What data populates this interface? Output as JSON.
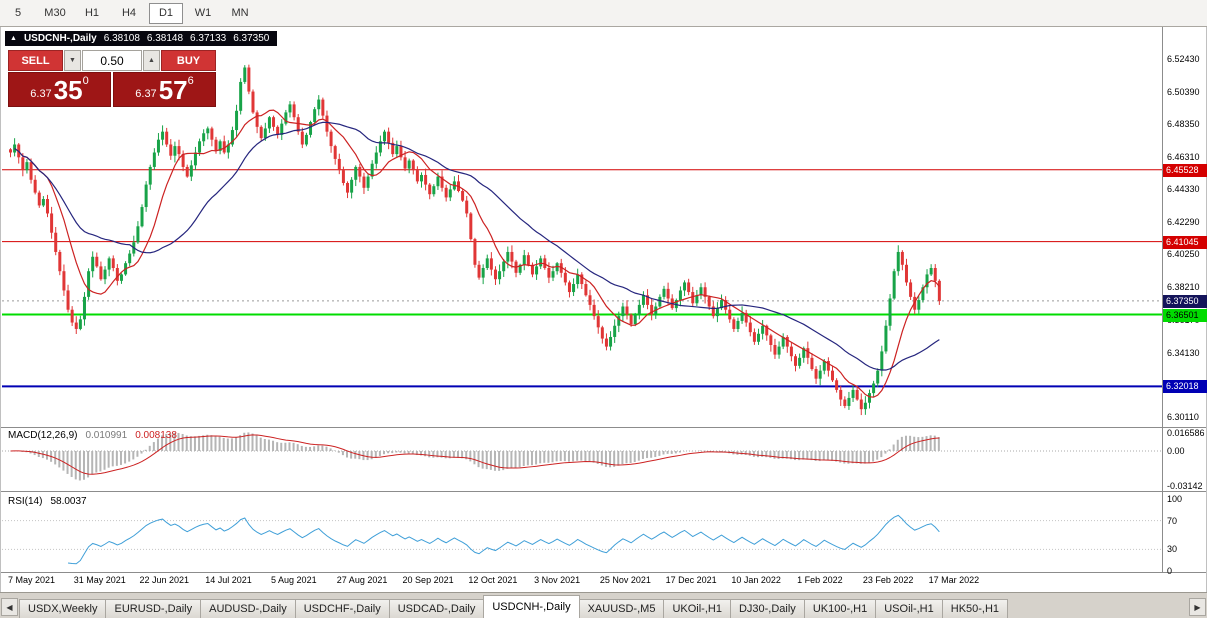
{
  "timeframe_toolbar": {
    "items": [
      "5",
      "M30",
      "H1",
      "H4",
      "D1",
      "W1",
      "MN"
    ],
    "active": "D1"
  },
  "icons": {
    "collapse": "▲",
    "dropdown_down": "▼",
    "spin_up": "▲",
    "scroll_left": "◀",
    "scroll_right": "▶"
  },
  "quote_header": {
    "symbol": "USDCNH-,Daily",
    "open": "6.38108",
    "high": "6.38148",
    "low": "6.37133",
    "close": "6.37350"
  },
  "trade_panel": {
    "sell_label": "SELL",
    "buy_label": "BUY",
    "lot_value": "0.50",
    "bid": {
      "prefix": "6.37",
      "big": "35",
      "sup": "0"
    },
    "ask": {
      "prefix": "6.37",
      "big": "57",
      "sup": "6"
    }
  },
  "indicators": {
    "macd": {
      "label": "MACD(12,26,9)",
      "main_value": "0.010991",
      "signal_value": "0.008138",
      "axis_labels": [
        {
          "text": "0.016586",
          "value": 0.016586
        },
        {
          "text": "0.00",
          "value": 0
        },
        {
          "text": "-0.03142",
          "value": -0.03142
        }
      ]
    },
    "rsi": {
      "label": "RSI(14)",
      "value": "58.0037",
      "axis_labels": [
        {
          "text": "100",
          "value": 100
        },
        {
          "text": "70",
          "value": 70
        },
        {
          "text": "30",
          "value": 30
        },
        {
          "text": "0",
          "value": 0
        }
      ],
      "levels": [
        70,
        30
      ]
    }
  },
  "colors": {
    "candle_up": "#18a348",
    "candle_down": "#e03636",
    "macd_hist": "#b5b5b5",
    "macd_signal": "#cc2222",
    "rsi_line": "#3f9fd8",
    "trade_button_red": "#d03434",
    "trade_price_red": "#9e1616",
    "current_price_badge": "#14145a"
  },
  "chart_data": {
    "type": "candlestick",
    "symbol": "USDCNH-",
    "timeframe": "Daily",
    "price_axis_ticks": [
      "6.52430",
      "6.50390",
      "6.48350",
      "6.46310",
      "6.44330",
      "6.42290",
      "6.40250",
      "6.38210",
      "6.36170",
      "6.34130",
      "6.30110"
    ],
    "current_price": {
      "value": 6.3735,
      "label": "6.37350"
    },
    "levels": [
      {
        "value": 6.45528,
        "label": "6.45528",
        "color": "#d40000",
        "width": 1
      },
      {
        "value": 6.41045,
        "label": "6.41045",
        "color": "#d40000",
        "width": 1
      },
      {
        "value": 6.36501,
        "label": "6.36501",
        "color": "#00dc00",
        "width": 2,
        "text_color": "#000000"
      },
      {
        "value": 6.32018,
        "label": "6.32018",
        "color": "#0000b4",
        "width": 2
      }
    ],
    "date_labels": [
      "7 May 2021",
      "31 May 2021",
      "22 Jun 2021",
      "14 Jul 2021",
      "5 Aug 2021",
      "27 Aug 2021",
      "20 Sep 2021",
      "12 Oct 2021",
      "3 Nov 2021",
      "25 Nov 2021",
      "17 Dec 2021",
      "10 Jan 2022",
      "1 Feb 2022",
      "23 Feb 2022",
      "17 Mar 2022"
    ],
    "bars_per_label_interval": 16,
    "first_open": 6.468,
    "closes": [
      6.466,
      6.471,
      6.463,
      6.455,
      6.46,
      6.449,
      6.441,
      6.433,
      6.437,
      6.428,
      6.416,
      6.404,
      6.392,
      6.38,
      6.368,
      6.36,
      6.356,
      6.362,
      6.376,
      6.392,
      6.401,
      6.395,
      6.387,
      6.393,
      6.4,
      6.394,
      6.386,
      6.39,
      6.397,
      6.403,
      6.41,
      6.42,
      6.432,
      6.446,
      6.457,
      6.466,
      6.474,
      6.479,
      6.471,
      6.464,
      6.47,
      6.465,
      6.457,
      6.451,
      6.458,
      6.466,
      6.473,
      6.478,
      6.481,
      6.474,
      6.467,
      6.473,
      6.466,
      6.471,
      6.48,
      6.492,
      6.51,
      6.519,
      6.504,
      6.491,
      6.482,
      6.475,
      6.481,
      6.488,
      6.482,
      6.477,
      6.484,
      6.491,
      6.496,
      6.488,
      6.479,
      6.471,
      6.477,
      6.485,
      6.493,
      6.499,
      6.489,
      6.479,
      6.47,
      6.462,
      6.455,
      6.447,
      6.441,
      6.449,
      6.457,
      6.451,
      6.444,
      6.451,
      6.459,
      6.466,
      6.473,
      6.479,
      6.472,
      6.465,
      6.47,
      6.463,
      6.456,
      6.461,
      6.455,
      6.448,
      6.452,
      6.446,
      6.44,
      6.445,
      6.451,
      6.444,
      6.438,
      6.443,
      6.448,
      6.442,
      6.436,
      6.428,
      6.412,
      6.396,
      6.388,
      6.394,
      6.4,
      6.393,
      6.387,
      6.392,
      6.398,
      6.404,
      6.398,
      6.391,
      6.396,
      6.402,
      6.396,
      6.39,
      6.395,
      6.4,
      6.394,
      6.388,
      6.392,
      6.397,
      6.391,
      6.385,
      6.379,
      6.384,
      6.39,
      6.384,
      6.377,
      6.371,
      6.364,
      6.357,
      6.35,
      6.345,
      6.351,
      6.358,
      6.364,
      6.37,
      6.365,
      6.359,
      6.365,
      6.371,
      6.377,
      6.371,
      6.365,
      6.37,
      6.376,
      6.381,
      6.375,
      6.369,
      6.374,
      6.38,
      6.385,
      6.379,
      6.372,
      6.377,
      6.382,
      6.376,
      6.37,
      6.364,
      6.369,
      6.374,
      6.368,
      6.362,
      6.356,
      6.361,
      6.366,
      6.36,
      6.354,
      6.348,
      6.353,
      6.358,
      6.352,
      6.346,
      6.34,
      6.345,
      6.351,
      6.345,
      6.339,
      6.333,
      6.338,
      6.344,
      6.338,
      6.331,
      6.325,
      6.33,
      6.336,
      6.33,
      6.324,
      6.318,
      6.312,
      6.308,
      6.313,
      6.318,
      6.312,
      6.306,
      6.31,
      6.316,
      6.322,
      6.33,
      6.342,
      6.358,
      6.375,
      6.392,
      6.404,
      6.396,
      6.385,
      6.376,
      6.368,
      6.374,
      6.382,
      6.39,
      6.394,
      6.386,
      6.3735
    ],
    "moving_averages": [
      {
        "period": 10,
        "color": "#cc2222"
      },
      {
        "period": 30,
        "color": "#26267e"
      }
    ]
  },
  "bottom_tabs": {
    "tabs": [
      "USDX,Weekly",
      "EURUSD-,Daily",
      "AUDUSD-,Daily",
      "USDCHF-,Daily",
      "USDCAD-,Daily",
      "USDCNH-,Daily",
      "XAUUSD-,M5",
      "UKOil-,H1",
      "DJ30-,Daily",
      "UK100-,H1",
      "USOil-,H1",
      "HK50-,H1"
    ],
    "active": "USDCNH-,Daily"
  }
}
